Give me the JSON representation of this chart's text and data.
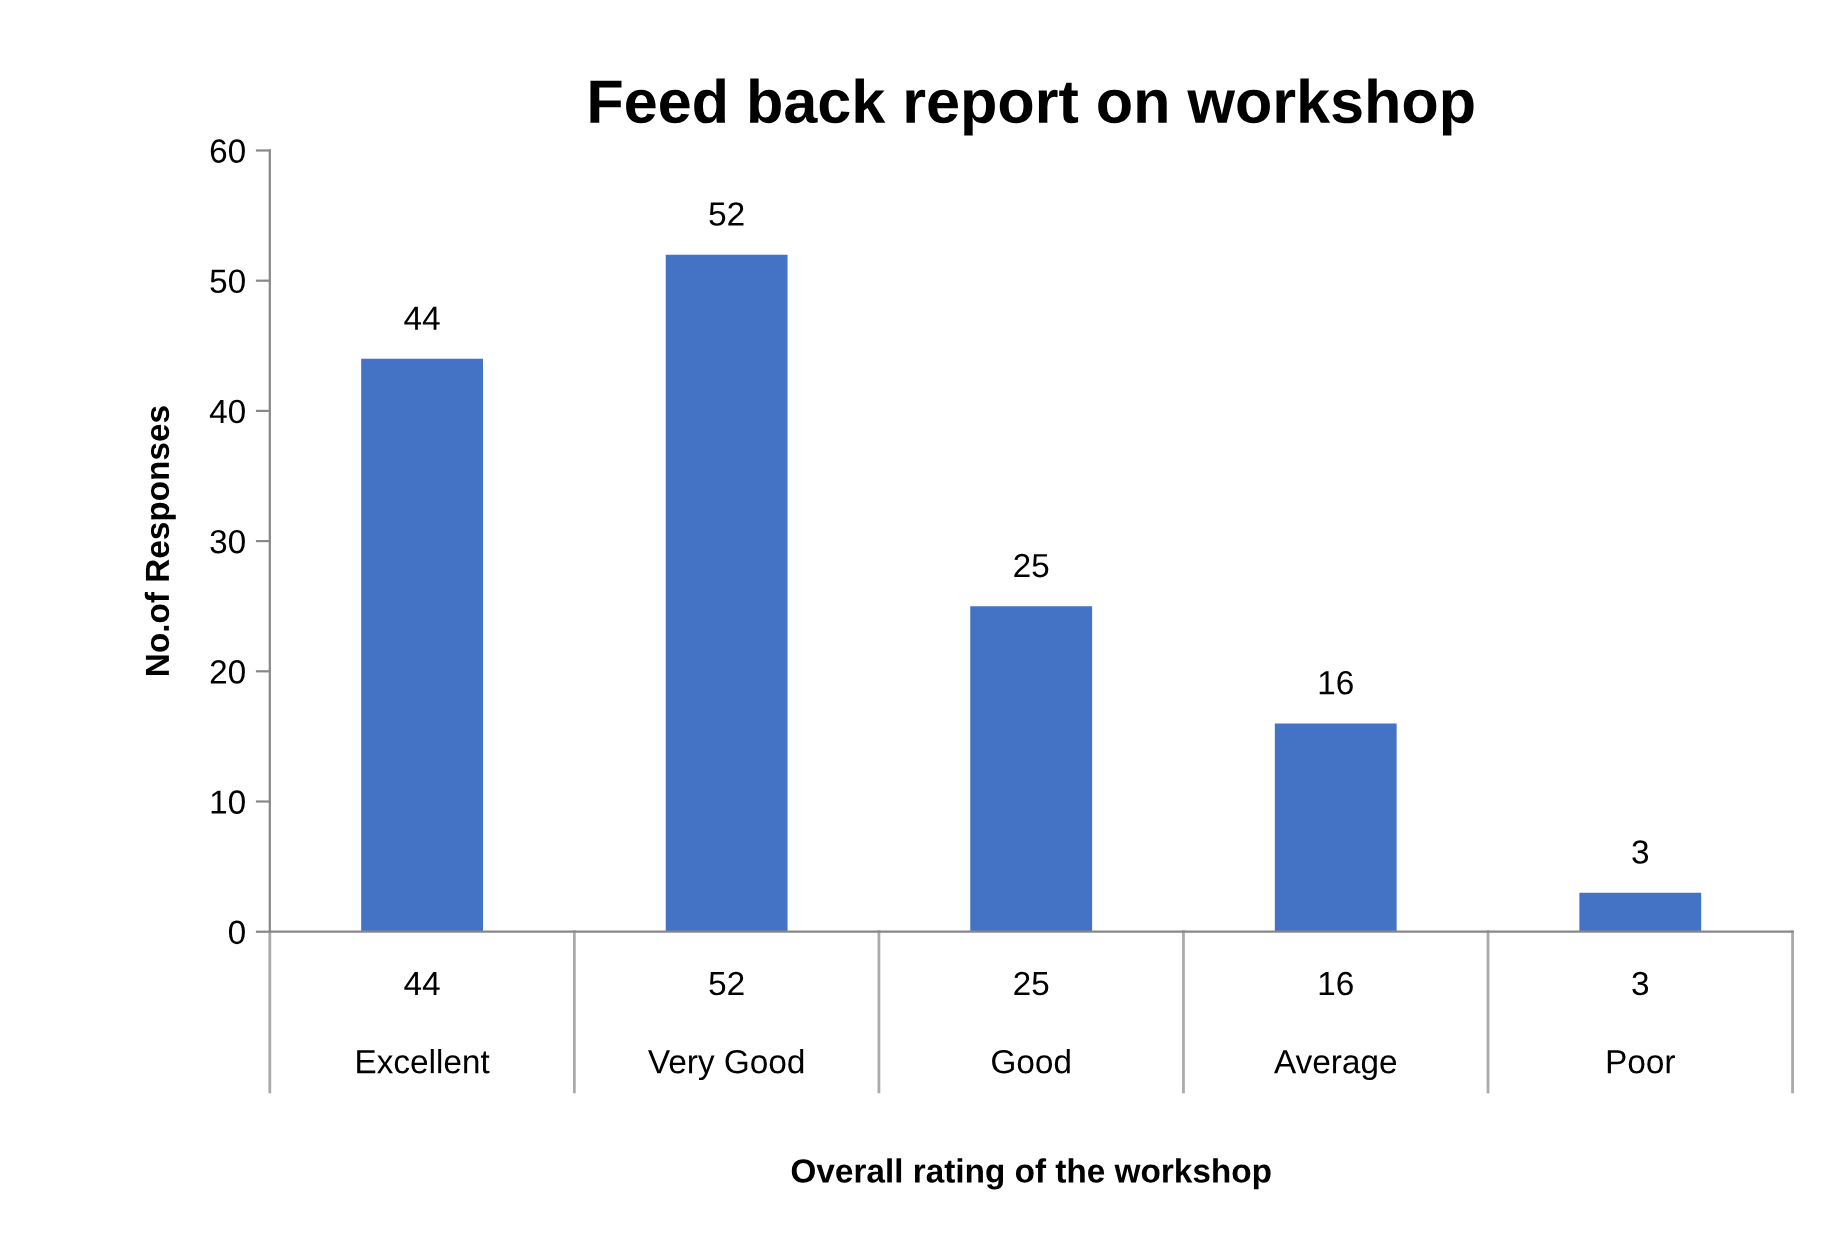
{
  "chart_data": {
    "type": "bar",
    "title": "Feed back report on workshop",
    "xlabel": "Overall rating of the workshop",
    "ylabel": "No.of Responses",
    "categories": [
      "Excellent",
      "Very Good",
      "Good",
      "Average",
      "Poor"
    ],
    "values": [
      44,
      52,
      25,
      16,
      3
    ],
    "color": "#4472c4",
    "ylim": [
      0,
      60
    ],
    "yticks": [
      0,
      10,
      20,
      30,
      40,
      50,
      60
    ],
    "annotations": [
      "44",
      "52",
      "25",
      "16",
      "3"
    ],
    "grid": false,
    "data_labels": true,
    "legend": false
  }
}
